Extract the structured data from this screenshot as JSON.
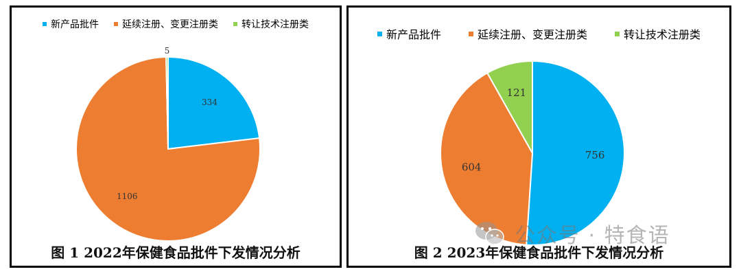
{
  "colors": {
    "blue": "#00b0f0",
    "orange": "#ed7d31",
    "green": "#92d050"
  },
  "chart_data": [
    {
      "type": "pie",
      "categories": [
        "新产品批件",
        "延续注册、变更注册类",
        "转让技术注册类"
      ],
      "values": [
        334,
        1106,
        5
      ],
      "data_labels": [
        "334",
        "1106",
        "5"
      ],
      "title": "图 1 2022年保健食品批件下发情况分析",
      "legend_position": "top"
    },
    {
      "type": "pie",
      "categories": [
        "新产品批件",
        "延续注册、变更注册类",
        "转让技术注册类"
      ],
      "values": [
        756,
        604,
        121
      ],
      "data_labels": [
        "756",
        "604",
        "121"
      ],
      "title": "图 2 2023年保健食品批件下发情况分析",
      "legend_position": "top"
    }
  ],
  "watermark": {
    "text": "公众号 · 特食语",
    "icon": "wechat-icon"
  }
}
